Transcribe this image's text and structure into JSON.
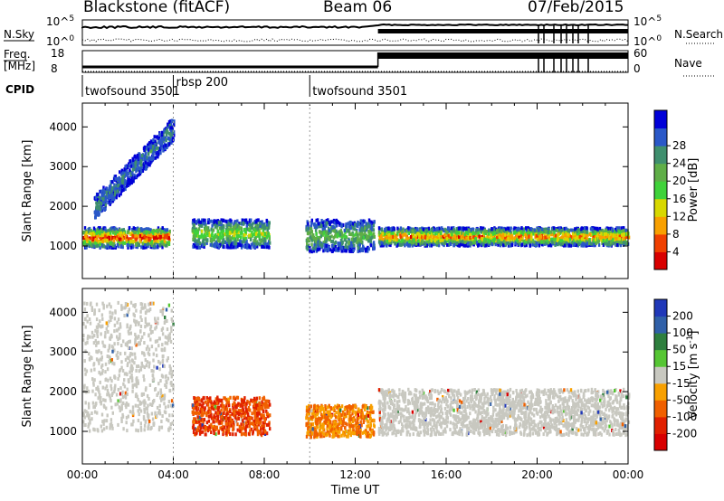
{
  "header": {
    "station": "Blackstone (fitACF)",
    "beam": "Beam 06",
    "date": "07/Feb/2015"
  },
  "strip": {
    "nsky_label": "N.Sky",
    "nsky_ticks": [
      "10^5",
      "10^0"
    ],
    "nsearch_label": "N.Search",
    "nsearch_ticks": [
      "10^5",
      "10^0"
    ],
    "freq_label_line1": "Freq.",
    "freq_label_line2": "[MHz]",
    "freq_ticks": [
      "18",
      "8"
    ],
    "nave_label": "Nave",
    "nave_ticks": [
      "60",
      "0"
    ],
    "cpid_label": "CPID",
    "cpid_segments": [
      {
        "label": "twofsound 3501",
        "start_hour": 0.0
      },
      {
        "label": "rbsp 200",
        "start_hour": 4.0
      },
      {
        "label": "twofsound 3501",
        "start_hour": 10.0
      }
    ]
  },
  "chart_data": [
    {
      "type": "heatmap",
      "title": "",
      "xlabel": "",
      "ylabel": "Slant Range [km]",
      "xlim": [
        0,
        24
      ],
      "ylim": [
        180,
        4600
      ],
      "y_ticks": [
        1000,
        2000,
        3000,
        4000
      ],
      "colorbar": {
        "label": "Power [dB]",
        "ticks": [
          "4",
          "8",
          "12",
          "16",
          "20",
          "24",
          "28"
        ],
        "colors": [
          "#0000d8",
          "#2a58c8",
          "#3f8f6e",
          "#5fae47",
          "#3fd23a",
          "#d8d800",
          "#f8a000",
          "#f04000",
          "#d80000"
        ]
      },
      "echo_regions": [
        {
          "band": "main echo (strong)",
          "start_hour": 0.0,
          "end_hour": 3.8,
          "range_km": [
            1000,
            1500
          ],
          "level_db": 28
        },
        {
          "band": "rising echo",
          "start_hour": 0.5,
          "end_hour": 4.0,
          "range_km": [
            2000,
            4200
          ],
          "level_db": 6
        },
        {
          "band": "mid echo",
          "start_hour": 4.8,
          "end_hour": 8.2,
          "range_km": [
            1000,
            1700
          ],
          "level_db": 16
        },
        {
          "band": "mid echo",
          "start_hour": 9.8,
          "end_hour": 12.8,
          "range_km": [
            900,
            1700
          ],
          "level_db": 12
        },
        {
          "band": "main echo (strong)",
          "start_hour": 13.0,
          "end_hour": 24.0,
          "range_km": [
            1050,
            1500
          ],
          "level_db": 24
        }
      ]
    },
    {
      "type": "heatmap",
      "title": "",
      "xlabel": "Time UT",
      "ylabel": "Slant Range [km]",
      "xlim": [
        0,
        24
      ],
      "ylim": [
        180,
        4600
      ],
      "x_ticks": [
        "00:00",
        "04:00",
        "08:00",
        "12:00",
        "16:00",
        "20:00",
        "00:00"
      ],
      "y_ticks": [
        1000,
        2000,
        3000,
        4000
      ],
      "colorbar": {
        "label": "Velocity [m s-1]",
        "ticks": [
          "200",
          "100",
          "50",
          "15",
          "-15",
          "-50",
          "-100",
          "-200"
        ],
        "colors": [
          "#2038b8",
          "#3060a8",
          "#2e7f3e",
          "#56c634",
          "#c8c8c0",
          "#f8a000",
          "#f06000",
          "#e02000",
          "#d80000"
        ]
      },
      "echo_regions": [
        {
          "band": "ground scatter",
          "start_hour": 0.0,
          "end_hour": 4.0,
          "range_km": [
            1050,
            4300
          ],
          "velocity": 0
        },
        {
          "band": "negative velocity",
          "start_hour": 4.8,
          "end_hour": 8.2,
          "range_km": [
            950,
            1900
          ],
          "velocity": -80
        },
        {
          "band": "negative velocity",
          "start_hour": 9.8,
          "end_hour": 12.8,
          "range_km": [
            900,
            1700
          ],
          "velocity": -60
        },
        {
          "band": "ground scatter",
          "start_hour": 13.0,
          "end_hour": 24.0,
          "range_km": [
            950,
            2100
          ],
          "velocity": 0
        }
      ]
    }
  ]
}
